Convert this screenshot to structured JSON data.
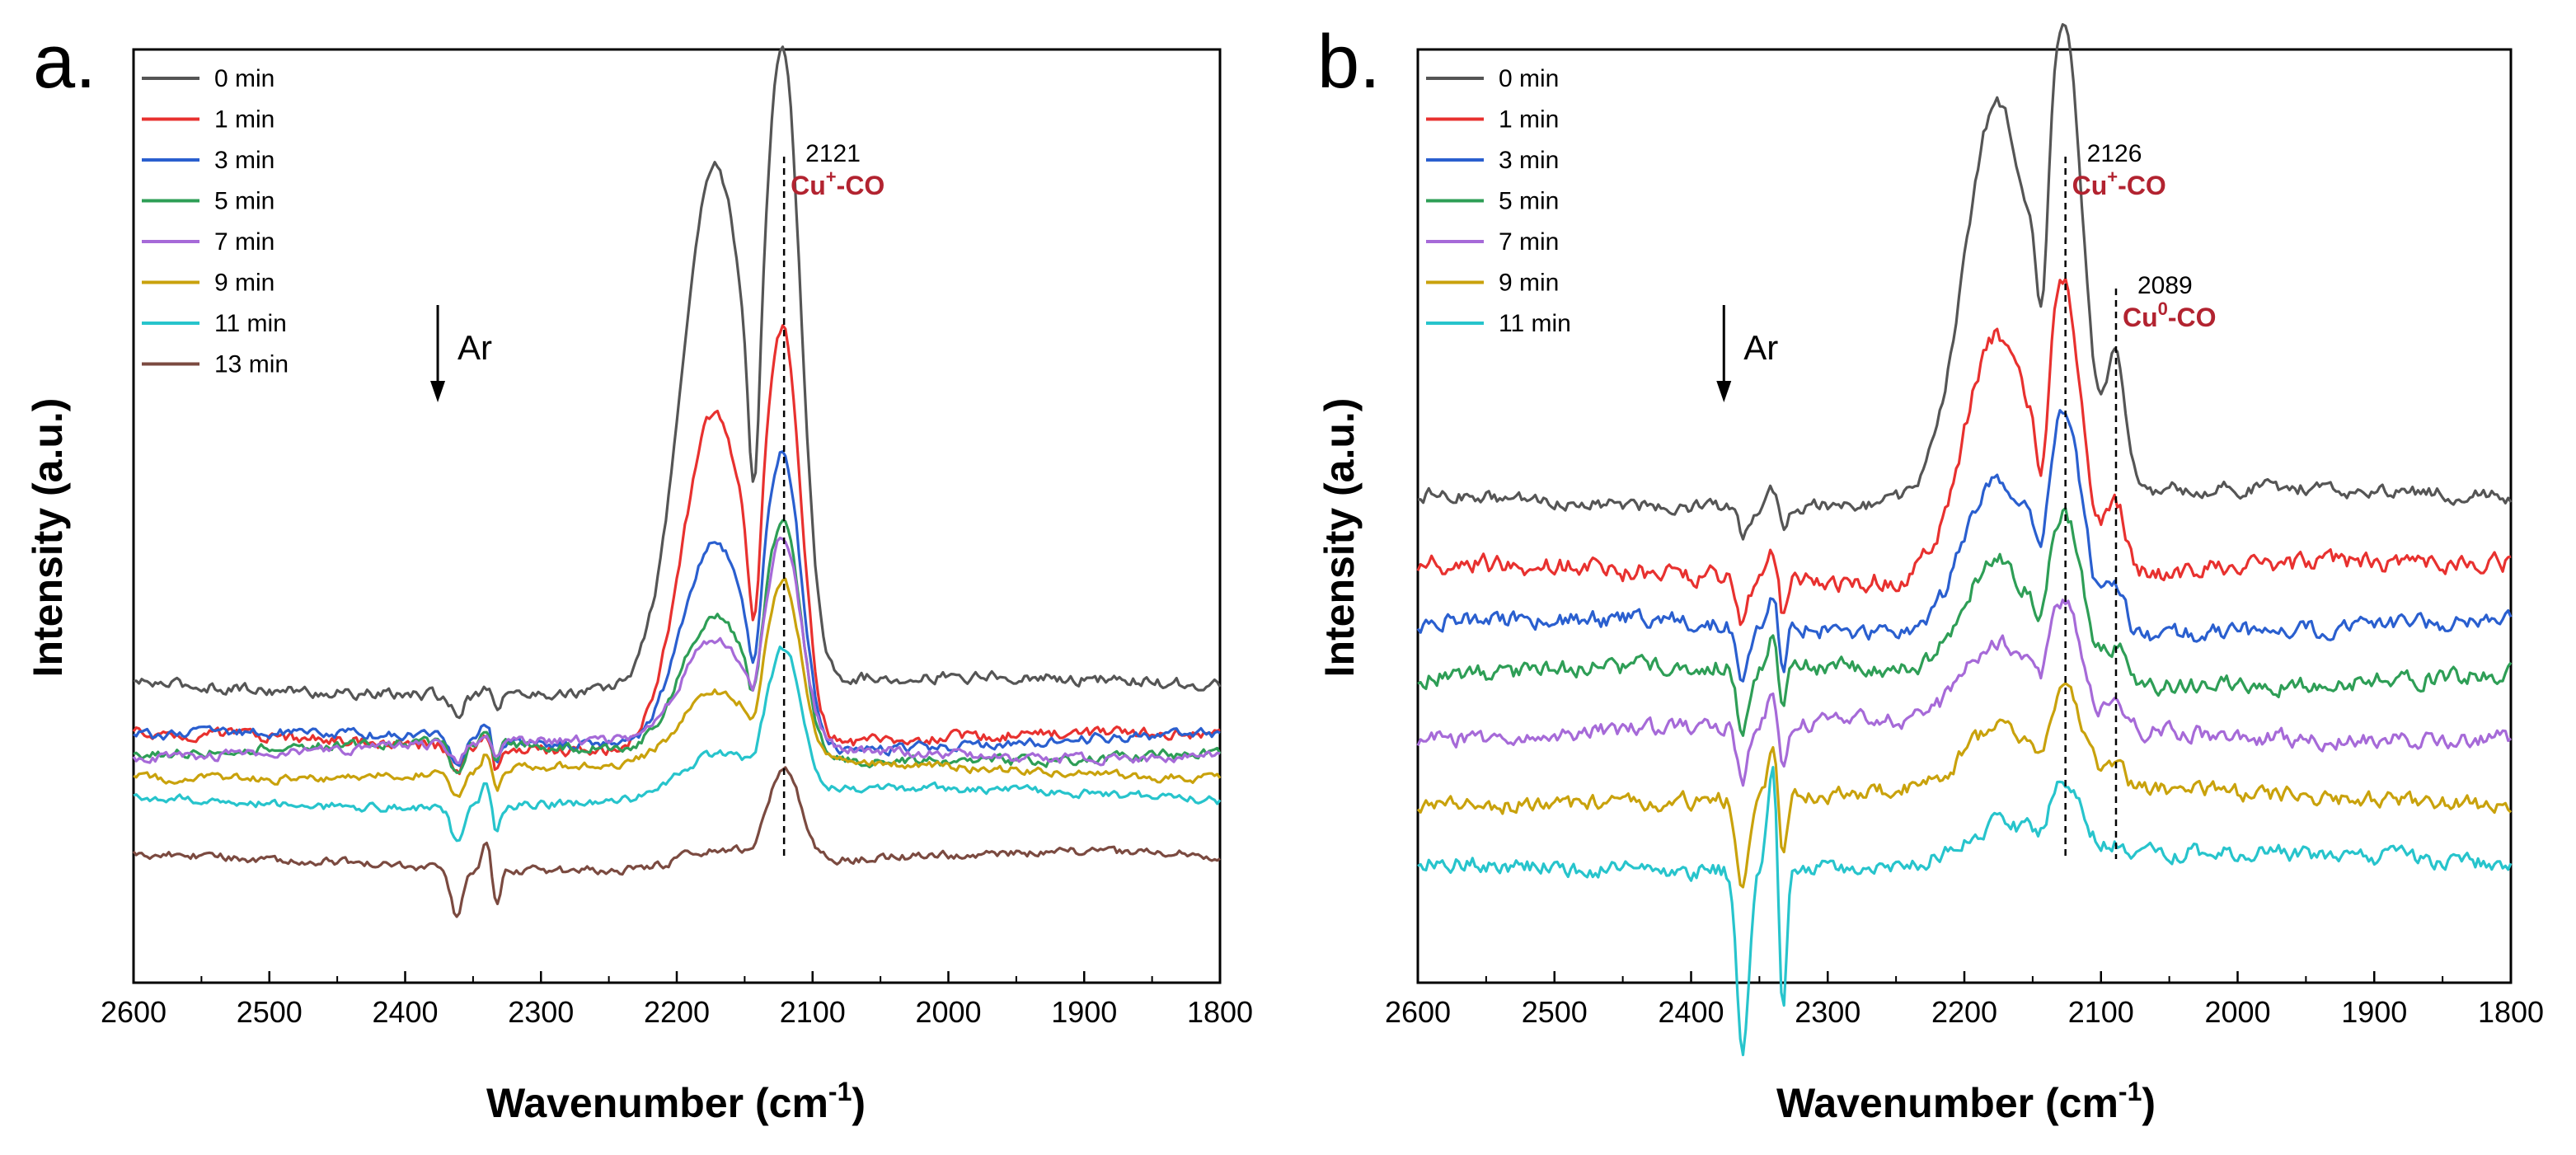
{
  "figure": {
    "panels": [
      {
        "letter": "a.",
        "ylabel": "Intensity (a.u.)",
        "xlabel_main": "Wavenumber (cm",
        "xlabel_sup": "-1",
        "xlabel_close": ")"
      },
      {
        "letter": "b.",
        "ylabel": "Intensity (a.u.)",
        "xlabel_main": "Wavenumber (cm",
        "xlabel_sup": "-1",
        "xlabel_close": ")"
      }
    ]
  },
  "chart_data": [
    {
      "type": "line",
      "panel": "a.",
      "title": "",
      "xlabel": "Wavenumber (cm-1)",
      "ylabel": "Intensity (a.u.)",
      "xlim": [
        2600,
        1800
      ],
      "x_reversed": true,
      "xticks": [
        2600,
        2500,
        2400,
        2300,
        2200,
        2100,
        2000,
        1900,
        1800
      ],
      "ylim": [
        0,
        1
      ],
      "yticks_shown": false,
      "legend_position": "top-left",
      "series": [
        {
          "name": "0 min",
          "color": "#555555",
          "baseline": 0.318,
          "amp_left": 0.9,
          "amp_main": 1.0,
          "amp_b": 0.0,
          "noise": 0.008,
          "co2_dip": 0.02
        },
        {
          "name": "1 min",
          "color": "#e8312f",
          "baseline": 0.258,
          "amp_left": 0.58,
          "amp_main": 0.66,
          "amp_b": 0.0,
          "noise": 0.008,
          "co2_dip": 0.03
        },
        {
          "name": "3 min",
          "color": "#2a5fcf",
          "baseline": 0.258,
          "amp_left": 0.36,
          "amp_main": 0.48,
          "amp_b": 0.0,
          "noise": 0.007,
          "co2_dip": 0.03
        },
        {
          "name": "5 min",
          "color": "#2e9e56",
          "baseline": 0.246,
          "amp_left": 0.24,
          "amp_main": 0.38,
          "amp_b": 0.0,
          "noise": 0.007,
          "co2_dip": 0.03
        },
        {
          "name": "7 min",
          "color": "#a66ad8",
          "baseline": 0.25,
          "amp_left": 0.18,
          "amp_main": 0.34,
          "amp_b": 0.0,
          "noise": 0.007,
          "co2_dip": 0.02
        },
        {
          "name": "9 min",
          "color": "#c9a20c",
          "baseline": 0.228,
          "amp_left": 0.12,
          "amp_main": 0.3,
          "amp_b": 0.0,
          "noise": 0.006,
          "co2_dip": 0.03
        },
        {
          "name": "11 min",
          "color": "#27c4cc",
          "baseline": 0.198,
          "amp_left": 0.07,
          "amp_main": 0.24,
          "amp_b": 0.0,
          "noise": 0.006,
          "co2_dip": 0.04
        },
        {
          "name": "13 min",
          "color": "#7b4a40",
          "baseline": 0.13,
          "amp_left": 0.03,
          "amp_main": 0.16,
          "amp_b": 0.0,
          "noise": 0.006,
          "co2_dip": 0.05
        }
      ],
      "peaks": [
        {
          "position": 2121,
          "value_label": "2121",
          "assignment_main": "Cu",
          "assignment_sup": "+",
          "assignment_tail": "-CO"
        }
      ],
      "left_peak_position": 2172,
      "annotation": {
        "text": "Ar",
        "position": 2376
      }
    },
    {
      "type": "line",
      "panel": "b.",
      "title": "",
      "xlabel": "Wavenumber (cm-1)",
      "ylabel": "Intensity (a.u.)",
      "xlim": [
        2600,
        1800
      ],
      "x_reversed": true,
      "xticks": [
        2600,
        2500,
        2400,
        2300,
        2200,
        2100,
        2000,
        1900,
        1800
      ],
      "ylim": [
        0,
        1
      ],
      "yticks_shown": false,
      "legend_position": "top-left",
      "series": [
        {
          "name": "0 min",
          "color": "#555555",
          "baseline": 0.52,
          "amp_left": 0.68,
          "amp_main": 0.73,
          "amp_b": 0.22,
          "noise": 0.01,
          "co2_dip": 0.03
        },
        {
          "name": "1 min",
          "color": "#e8312f",
          "baseline": 0.44,
          "amp_left": 0.42,
          "amp_main": 0.45,
          "amp_b": 0.12,
          "noise": 0.014,
          "co2_dip": 0.05
        },
        {
          "name": "3 min",
          "color": "#2a5fcf",
          "baseline": 0.38,
          "amp_left": 0.28,
          "amp_main": 0.36,
          "amp_b": 0.08,
          "noise": 0.013,
          "co2_dip": 0.06
        },
        {
          "name": "5 min",
          "color": "#2e9e56",
          "baseline": 0.33,
          "amp_left": 0.2,
          "amp_main": 0.26,
          "amp_b": 0.06,
          "noise": 0.013,
          "co2_dip": 0.07
        },
        {
          "name": "7 min",
          "color": "#a66ad8",
          "baseline": 0.27,
          "amp_left": 0.14,
          "amp_main": 0.2,
          "amp_b": 0.04,
          "noise": 0.012,
          "co2_dip": 0.06
        },
        {
          "name": "9 min",
          "color": "#c9a20c",
          "baseline": 0.2,
          "amp_left": 0.1,
          "amp_main": 0.16,
          "amp_b": 0.03,
          "noise": 0.012,
          "co2_dip": 0.1
        },
        {
          "name": "11 min",
          "color": "#27c4cc",
          "baseline": 0.13,
          "amp_left": 0.06,
          "amp_main": 0.12,
          "amp_b": 0.02,
          "noise": 0.012,
          "co2_dip": 0.2
        }
      ],
      "peaks": [
        {
          "position": 2126,
          "value_label": "2126",
          "assignment_main": "Cu",
          "assignment_sup": "+",
          "assignment_tail": "-CO"
        },
        {
          "position": 2089,
          "value_label": "2089",
          "assignment_main": "Cu",
          "assignment_sup": "0",
          "assignment_tail": "-CO"
        }
      ],
      "left_peak_position": 2176,
      "annotation": {
        "text": "Ar",
        "position": 2376
      }
    }
  ]
}
